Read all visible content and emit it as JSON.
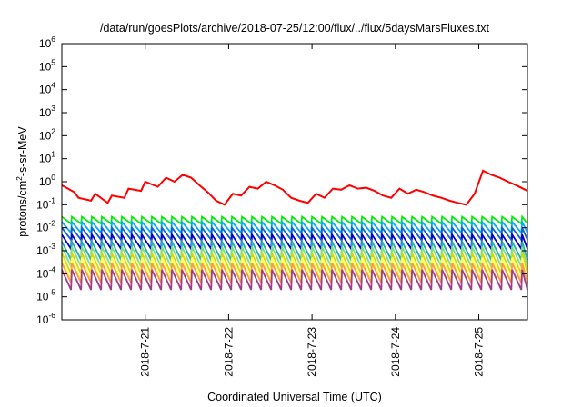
{
  "chart_data": {
    "type": "line",
    "title": "/data/run/goesPlots/archive/2018-07-25/12:00/flux/../flux/5daysMarsFluxes.txt",
    "xlabel": "Coordinated Universal Time (UTC)",
    "ylabel_parts": [
      "protons/cm",
      "2",
      "-s-sr-MeV"
    ],
    "y_scale": "log",
    "ylim": [
      1e-06,
      1000000.0
    ],
    "y_ticks": [
      {
        "exp": -6,
        "base": "10",
        "sup": "-6"
      },
      {
        "exp": -5,
        "base": "10",
        "sup": "-5"
      },
      {
        "exp": -4,
        "base": "10",
        "sup": "-4"
      },
      {
        "exp": -3,
        "base": "10",
        "sup": "-3"
      },
      {
        "exp": -2,
        "base": "10",
        "sup": "-2"
      },
      {
        "exp": -1,
        "base": "10",
        "sup": "-1"
      },
      {
        "exp": 0,
        "base": "10",
        "sup": "0"
      },
      {
        "exp": 1,
        "base": "10",
        "sup": "1"
      },
      {
        "exp": 2,
        "base": "10",
        "sup": "2"
      },
      {
        "exp": 3,
        "base": "10",
        "sup": "3"
      },
      {
        "exp": 4,
        "base": "10",
        "sup": "4"
      },
      {
        "exp": 5,
        "base": "10",
        "sup": "5"
      },
      {
        "exp": 6,
        "base": "10",
        "sup": "6"
      }
    ],
    "xlim": [
      "2018-07-20T00:00",
      "2018-07-25T14:00"
    ],
    "x_ticks": [
      {
        "label": "2018-7-21",
        "day": 1
      },
      {
        "label": "2018-7-22",
        "day": 2
      },
      {
        "label": "2018-7-23",
        "day": 3
      },
      {
        "label": "2018-7-24",
        "day": 4
      },
      {
        "label": "2018-7-25",
        "day": 5
      }
    ],
    "grid": false,
    "series": [
      {
        "color": "#ff0000",
        "day": [
          0.0,
          0.15,
          0.2,
          0.35,
          0.4,
          0.55,
          0.6,
          0.75,
          0.8,
          0.95,
          1.0,
          1.15,
          1.25,
          1.35,
          1.45,
          1.55,
          1.65,
          1.75,
          1.85,
          1.95,
          2.05,
          2.15,
          2.25,
          2.35,
          2.45,
          2.55,
          2.65,
          2.75,
          2.85,
          2.95,
          3.05,
          3.15,
          3.25,
          3.35,
          3.45,
          3.55,
          3.65,
          3.75,
          3.85,
          3.95,
          4.05,
          4.15,
          4.25,
          4.35,
          4.45,
          4.55,
          4.65,
          4.75,
          4.85,
          4.95,
          5.05,
          5.15,
          5.25,
          5.35,
          5.45,
          5.583
        ],
        "y": [
          0.7,
          0.35,
          0.2,
          0.15,
          0.3,
          0.12,
          0.25,
          0.2,
          0.5,
          0.4,
          1.0,
          0.6,
          1.5,
          1.0,
          2.0,
          1.5,
          0.7,
          0.35,
          0.15,
          0.1,
          0.3,
          0.25,
          0.6,
          0.5,
          1.0,
          0.7,
          0.45,
          0.2,
          0.15,
          0.12,
          0.3,
          0.2,
          0.5,
          0.45,
          0.7,
          0.5,
          0.55,
          0.4,
          0.25,
          0.2,
          0.5,
          0.3,
          0.45,
          0.35,
          0.25,
          0.2,
          0.15,
          0.12,
          0.1,
          0.3,
          3.0,
          2.0,
          1.5,
          1.0,
          0.7,
          0.4
        ]
      },
      {
        "color": "#00ee00",
        "period": 0.12,
        "peak": 0.03,
        "trough": 0.015
      },
      {
        "color": "#00aaff",
        "period": 0.12,
        "peak": 0.018,
        "trough": 0.006
      },
      {
        "color": "#1060d0",
        "period": 0.12,
        "peak": 0.01,
        "trough": 0.003
      },
      {
        "color": "#0000cc",
        "period": 0.12,
        "peak": 0.005,
        "trough": 0.0012
      },
      {
        "color": "#20b0b0",
        "period": 0.12,
        "peak": 0.0025,
        "trough": 0.0004
      },
      {
        "color": "#80e080",
        "period": 0.12,
        "peak": 0.0015,
        "trough": 0.0002
      },
      {
        "color": "#d8d800",
        "period": 0.12,
        "peak": 0.0008,
        "trough": 0.0001
      },
      {
        "color": "#ffff60",
        "period": 0.12,
        "peak": 0.0005,
        "trough": 5e-05
      },
      {
        "color": "#ff9a40",
        "period": 0.12,
        "peak": 0.0003,
        "trough": 4e-05
      },
      {
        "color": "#a03c88",
        "period": 0.12,
        "peak": 0.00015,
        "trough": 2e-05
      }
    ]
  }
}
